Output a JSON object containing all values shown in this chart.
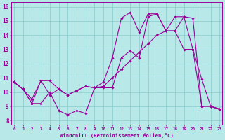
{
  "xlabel": "Windchill (Refroidissement éolien,°C)",
  "yticks": [
    8,
    9,
    10,
    11,
    12,
    13,
    14,
    15,
    16
  ],
  "xticks": [
    0,
    1,
    2,
    3,
    4,
    5,
    6,
    7,
    8,
    9,
    10,
    11,
    12,
    13,
    14,
    15,
    16,
    17,
    18,
    19,
    20,
    21,
    22,
    23
  ],
  "line_color": "#990099",
  "bg_color": "#b8e8e8",
  "grid_color": "#88cccc",
  "line1_x": [
    0,
    1,
    2,
    3,
    4,
    5,
    6,
    7,
    8,
    9,
    10,
    11,
    12,
    13,
    14,
    15,
    16,
    17,
    18,
    19,
    20,
    21,
    22,
    23
  ],
  "line1_y": [
    10.7,
    10.2,
    9.2,
    9.2,
    10.0,
    8.7,
    8.4,
    8.7,
    8.5,
    10.3,
    10.3,
    10.3,
    12.4,
    12.9,
    12.4,
    15.3,
    15.5,
    14.3,
    14.3,
    13.0,
    13.0,
    9.0,
    9.0,
    8.8
  ],
  "line2_x": [
    0,
    1,
    2,
    3,
    4,
    5,
    6,
    7,
    8,
    9,
    10,
    11,
    12,
    13,
    14,
    15,
    16,
    17,
    18,
    19,
    20,
    21,
    22,
    23
  ],
  "line2_y": [
    10.7,
    10.2,
    9.5,
    10.8,
    10.8,
    10.2,
    9.8,
    10.1,
    10.4,
    10.3,
    10.4,
    11.0,
    11.6,
    12.2,
    12.8,
    13.4,
    14.0,
    14.3,
    14.3,
    15.3,
    15.2,
    9.0,
    9.0,
    8.8
  ],
  "line3_x": [
    0,
    1,
    2,
    3,
    4,
    5,
    6,
    7,
    8,
    9,
    10,
    11,
    12,
    13,
    14,
    15,
    16,
    17,
    18,
    19,
    20,
    21,
    22,
    23
  ],
  "line3_y": [
    10.7,
    10.2,
    9.2,
    10.8,
    9.8,
    10.2,
    9.8,
    10.1,
    10.4,
    10.3,
    10.7,
    12.4,
    15.2,
    15.6,
    14.2,
    15.5,
    15.5,
    14.3,
    15.3,
    15.3,
    13.0,
    10.9,
    9.0,
    8.8
  ],
  "xlim": [
    -0.3,
    23.3
  ],
  "ylim": [
    7.7,
    16.3
  ]
}
